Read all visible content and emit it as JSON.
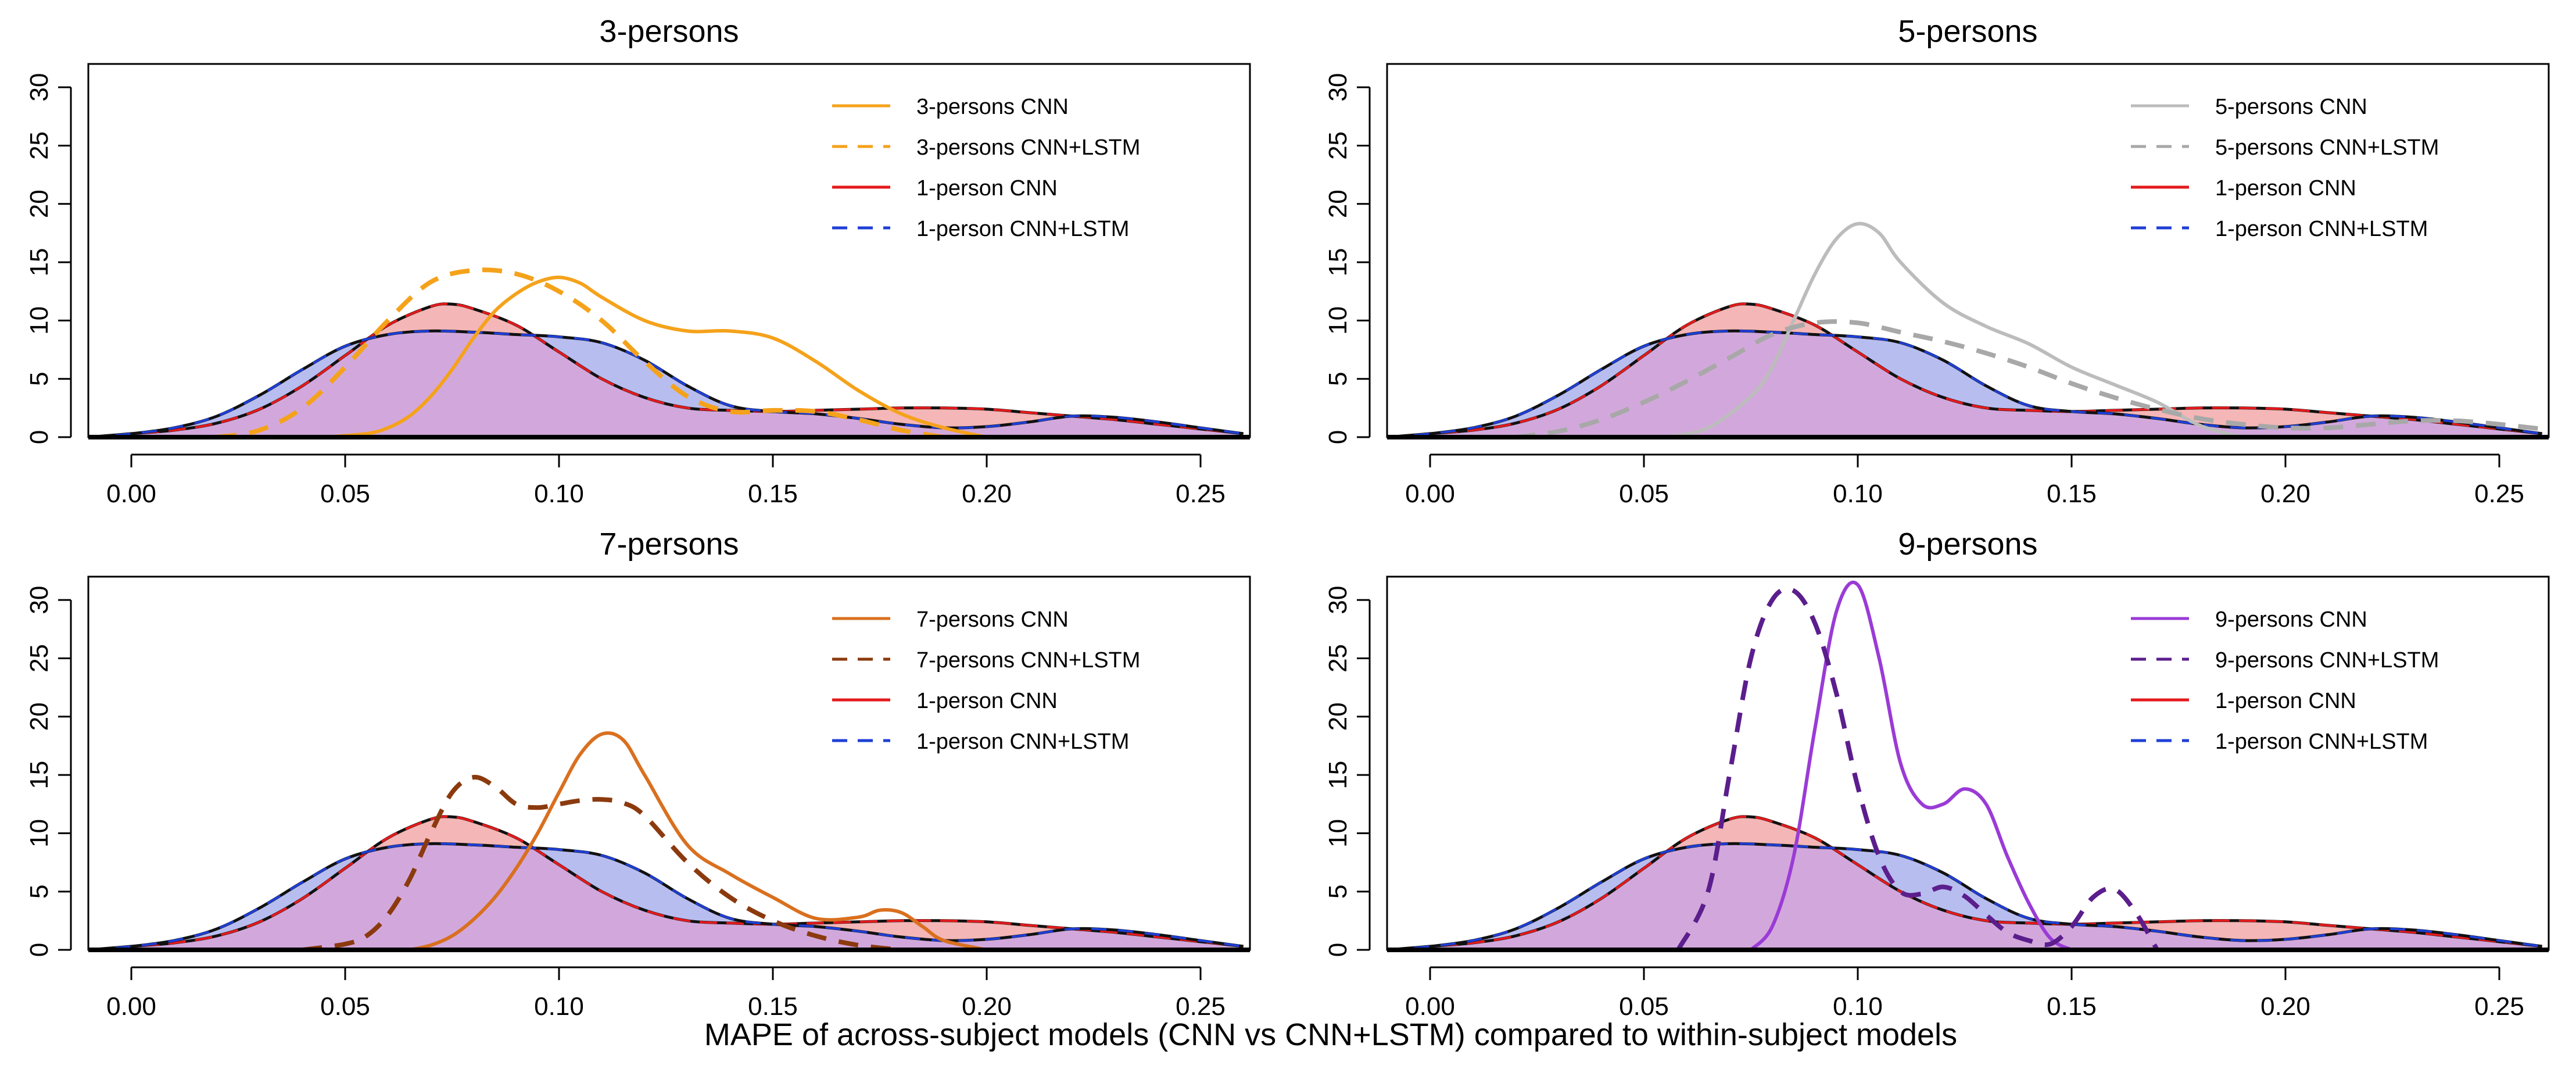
{
  "figure": {
    "xlabel": "MAPE of across-subject models (CNN vs CNN+LSTM) compared to within-subject models"
  },
  "baseline": {
    "note_x": "shared 1-person densities drawn in every panel",
    "one_person_cnn_color": "#e41a1c",
    "one_person_cnn_fill": "#f4b6b6",
    "one_person_lstm_color": "#1f3fd6",
    "one_person_lstm_fill": "#b8bdf0",
    "overlap_fill": "#d2a8dc",
    "one_person_cnn": {
      "x": [
        -0.01,
        0.0,
        0.01,
        0.02,
        0.03,
        0.04,
        0.05,
        0.06,
        0.07,
        0.075,
        0.08,
        0.09,
        0.1,
        0.11,
        0.12,
        0.13,
        0.14,
        0.15,
        0.16,
        0.17,
        0.18,
        0.19,
        0.2,
        0.21,
        0.22,
        0.23,
        0.24,
        0.25,
        0.26
      ],
      "y": [
        0.0,
        0.3,
        0.6,
        1.2,
        2.4,
        4.4,
        7.0,
        9.6,
        11.2,
        11.4,
        11.0,
        9.6,
        7.3,
        5.0,
        3.4,
        2.5,
        2.3,
        2.2,
        2.3,
        2.4,
        2.5,
        2.5,
        2.4,
        2.1,
        1.8,
        1.5,
        1.1,
        0.7,
        0.3
      ]
    },
    "one_person_lstm": {
      "x": [
        -0.01,
        0.0,
        0.01,
        0.02,
        0.03,
        0.04,
        0.05,
        0.06,
        0.07,
        0.08,
        0.09,
        0.1,
        0.11,
        0.12,
        0.13,
        0.14,
        0.15,
        0.16,
        0.17,
        0.18,
        0.19,
        0.2,
        0.21,
        0.22,
        0.23,
        0.24,
        0.25,
        0.26
      ],
      "y": [
        0.0,
        0.3,
        0.8,
        1.8,
        3.6,
        5.8,
        7.8,
        8.8,
        9.1,
        9.0,
        8.8,
        8.6,
        8.1,
        6.6,
        4.4,
        2.7,
        2.2,
        2.0,
        1.6,
        1.1,
        0.8,
        0.9,
        1.3,
        1.8,
        1.7,
        1.3,
        0.8,
        0.3
      ]
    }
  },
  "chart_data": [
    {
      "type": "line",
      "title": "3-persons",
      "xlim": [
        -0.01,
        0.26
      ],
      "ylim": [
        0,
        32
      ],
      "xticks": [
        "0.00",
        "0.05",
        "0.10",
        "0.15",
        "0.20",
        "0.25"
      ],
      "yticks": [
        "0",
        "5",
        "10",
        "15",
        "20",
        "25",
        "30"
      ],
      "legend": [
        "3-persons CNN",
        "3-persons CNN+LSTM",
        "1-person CNN",
        "1-person CNN+LSTM"
      ],
      "series": [
        {
          "name": "3-persons CNN",
          "color": "#f5a21b",
          "dashed": false,
          "x": [
            0.045,
            0.055,
            0.06,
            0.065,
            0.07,
            0.075,
            0.08,
            0.085,
            0.09,
            0.095,
            0.1,
            0.105,
            0.11,
            0.12,
            0.13,
            0.14,
            0.15,
            0.16,
            0.17,
            0.18,
            0.19,
            0.2
          ],
          "y": [
            0.0,
            0.3,
            0.8,
            1.8,
            3.5,
            5.8,
            8.5,
            10.8,
            12.3,
            13.3,
            13.7,
            13.2,
            12.0,
            10.0,
            9.1,
            9.1,
            8.5,
            6.5,
            4.0,
            2.0,
            0.8,
            0.0
          ]
        },
        {
          "name": "3-persons CNN+LSTM",
          "color": "#f5a21b",
          "dashed": true,
          "x": [
            0.02,
            0.03,
            0.04,
            0.05,
            0.06,
            0.07,
            0.08,
            0.09,
            0.1,
            0.11,
            0.12,
            0.13,
            0.14,
            0.15,
            0.16,
            0.17,
            0.18,
            0.19
          ],
          "y": [
            0.0,
            0.6,
            2.5,
            6.0,
            10.0,
            13.3,
            14.3,
            14.0,
            12.5,
            10.0,
            6.5,
            3.5,
            2.2,
            2.3,
            2.2,
            1.5,
            0.6,
            0.0
          ]
        }
      ]
    },
    {
      "type": "line",
      "title": "5-persons",
      "xlim": [
        -0.01,
        0.26
      ],
      "ylim": [
        0,
        32
      ],
      "xticks": [
        "0.00",
        "0.05",
        "0.10",
        "0.15",
        "0.20",
        "0.25"
      ],
      "yticks": [
        "0",
        "5",
        "10",
        "15",
        "20",
        "25",
        "30"
      ],
      "legend": [
        "5-persons CNN",
        "5-persons CNN+LSTM",
        "1-person CNN",
        "1-person CNN+LSTM"
      ],
      "series": [
        {
          "name": "5-persons CNN",
          "color": "#bcbcbc",
          "dashed": false,
          "x": [
            0.055,
            0.065,
            0.075,
            0.08,
            0.085,
            0.09,
            0.095,
            0.1,
            0.105,
            0.11,
            0.12,
            0.13,
            0.14,
            0.15,
            0.16,
            0.17,
            0.18,
            0.19
          ],
          "y": [
            0.0,
            0.8,
            3.5,
            6.0,
            10.0,
            14.0,
            17.0,
            18.3,
            17.5,
            15.0,
            11.5,
            9.5,
            8.0,
            6.0,
            4.5,
            3.0,
            1.0,
            0.0
          ]
        },
        {
          "name": "5-persons CNN+LSTM",
          "color": "#a8a8a8",
          "dashed": true,
          "x": [
            0.02,
            0.03,
            0.04,
            0.05,
            0.06,
            0.07,
            0.08,
            0.09,
            0.1,
            0.11,
            0.12,
            0.13,
            0.14,
            0.15,
            0.16,
            0.17,
            0.18,
            0.19,
            0.2,
            0.21,
            0.22,
            0.23,
            0.24,
            0.25,
            0.26
          ],
          "y": [
            0.0,
            0.5,
            1.5,
            3.0,
            4.8,
            6.8,
            8.8,
            9.8,
            9.8,
            9.0,
            8.2,
            7.2,
            6.0,
            4.6,
            3.4,
            2.4,
            1.6,
            1.1,
            0.8,
            0.8,
            1.1,
            1.4,
            1.4,
            1.1,
            0.7
          ]
        }
      ]
    },
    {
      "type": "line",
      "title": "7-persons",
      "xlim": [
        -0.01,
        0.26
      ],
      "ylim": [
        0,
        32
      ],
      "xticks": [
        "0.00",
        "0.05",
        "0.10",
        "0.15",
        "0.20",
        "0.25"
      ],
      "yticks": [
        "0",
        "5",
        "10",
        "15",
        "20",
        "25",
        "30"
      ],
      "legend": [
        "7-persons CNN",
        "7-persons CNN+LSTM",
        "1-person CNN",
        "1-person CNN+LSTM"
      ],
      "series": [
        {
          "name": "7-persons CNN",
          "color": "#d9701f",
          "dashed": false,
          "x": [
            0.065,
            0.07,
            0.075,
            0.08,
            0.085,
            0.09,
            0.095,
            0.1,
            0.105,
            0.11,
            0.115,
            0.12,
            0.13,
            0.14,
            0.15,
            0.16,
            0.17,
            0.175,
            0.18,
            0.185,
            0.19,
            0.2
          ],
          "y": [
            0.0,
            0.4,
            1.2,
            2.6,
            4.5,
            7.0,
            10.0,
            13.5,
            16.8,
            18.5,
            18.0,
            15.0,
            9.0,
            6.5,
            4.5,
            2.7,
            2.8,
            3.4,
            3.2,
            2.0,
            0.8,
            0.0
          ]
        },
        {
          "name": "7-persons CNN+LSTM",
          "color": "#8b3a0e",
          "dashed": true,
          "x": [
            0.04,
            0.05,
            0.055,
            0.06,
            0.065,
            0.07,
            0.075,
            0.08,
            0.085,
            0.09,
            0.095,
            0.1,
            0.105,
            0.11,
            0.115,
            0.12,
            0.13,
            0.14,
            0.15,
            0.16,
            0.17,
            0.18
          ],
          "y": [
            0.0,
            0.5,
            1.2,
            3.0,
            6.0,
            10.0,
            13.5,
            14.8,
            14.0,
            12.5,
            12.2,
            12.5,
            12.8,
            12.9,
            12.6,
            11.5,
            7.5,
            4.5,
            2.5,
            1.2,
            0.4,
            0.0
          ]
        }
      ]
    },
    {
      "type": "line",
      "title": "9-persons",
      "xlim": [
        -0.01,
        0.26
      ],
      "ylim": [
        0,
        32
      ],
      "xticks": [
        "0.00",
        "0.05",
        "0.10",
        "0.15",
        "0.20",
        "0.25"
      ],
      "yticks": [
        "0",
        "5",
        "10",
        "15",
        "20",
        "25",
        "30"
      ],
      "legend": [
        "9-persons CNN",
        "9-persons CNN+LSTM",
        "1-person CNN",
        "1-person CNN+LSTM"
      ],
      "series": [
        {
          "name": "9-persons CNN",
          "color": "#9a3bd6",
          "dashed": false,
          "x": [
            0.075,
            0.08,
            0.085,
            0.09,
            0.095,
            0.1,
            0.105,
            0.11,
            0.115,
            0.12,
            0.125,
            0.13,
            0.135,
            0.14,
            0.145,
            0.15
          ],
          "y": [
            0.0,
            2.0,
            8.0,
            19.0,
            29.0,
            31.3,
            25.0,
            16.0,
            12.5,
            12.5,
            13.8,
            12.5,
            8.0,
            4.0,
            1.0,
            0.0
          ]
        },
        {
          "name": "9-persons CNN+LSTM",
          "color": "#5b1e8c",
          "dashed": true,
          "x": [
            0.058,
            0.065,
            0.07,
            0.075,
            0.08,
            0.085,
            0.09,
            0.095,
            0.1,
            0.105,
            0.11,
            0.115,
            0.12,
            0.125,
            0.13,
            0.135,
            0.14,
            0.145,
            0.15,
            0.155,
            0.16,
            0.165,
            0.17
          ],
          "y": [
            0.0,
            5.0,
            15.0,
            25.0,
            30.0,
            30.8,
            28.0,
            22.0,
            14.0,
            8.0,
            5.0,
            4.8,
            5.4,
            4.6,
            3.0,
            1.5,
            0.8,
            0.5,
            2.0,
            4.5,
            5.2,
            3.2,
            0.0
          ]
        }
      ]
    }
  ]
}
